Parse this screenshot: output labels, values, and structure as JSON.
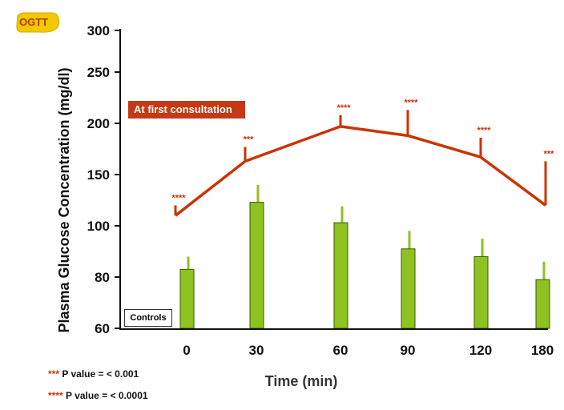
{
  "badge": {
    "label": "OGTT"
  },
  "chart_data": {
    "type": "line+bar",
    "title": "",
    "xlabel": "Time (min)",
    "ylabel": "Plasma Glucose Concentration (mg/dl)",
    "y_ticks": [
      "60",
      "80",
      "100",
      "150",
      "200",
      "250",
      "300"
    ],
    "ylim": [
      60,
      300
    ],
    "categories": [
      "0",
      "30",
      "60",
      "90",
      "120",
      "180"
    ],
    "series": [
      {
        "name": "At first consultation",
        "type": "line",
        "color": "#cc3300",
        "values": [
          110,
          163,
          197,
          188,
          167,
          120
        ],
        "error_upper": [
          120,
          177,
          208,
          213,
          186,
          163
        ],
        "significance": [
          "****",
          "***",
          "****",
          "****",
          "****",
          "***"
        ]
      },
      {
        "name": "Controls",
        "type": "bar",
        "color": "#8ec220",
        "values": [
          83,
          123,
          103,
          91,
          88,
          79
        ],
        "error_upper": [
          88,
          140,
          119,
          98,
          95,
          86
        ]
      }
    ]
  },
  "footnotes": [
    {
      "stars": "***",
      "text": "P value = < 0.001"
    },
    {
      "stars": "****",
      "text": "P value = < 0.0001"
    }
  ]
}
